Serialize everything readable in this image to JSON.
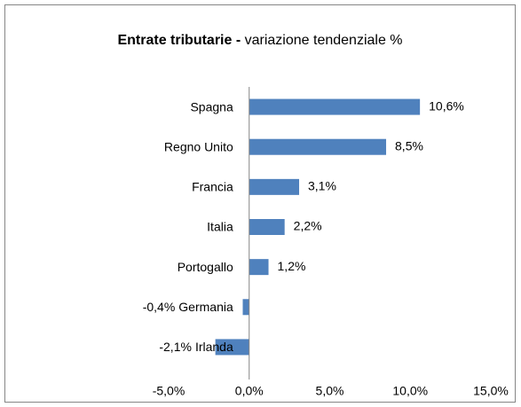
{
  "chart_data": {
    "type": "bar",
    "orientation": "horizontal",
    "title": [
      "Entrate tributarie -",
      "variazione tendenziale %"
    ],
    "categories": [
      "Spagna",
      "Regno Unito",
      "Francia",
      "Italia",
      "Portogallo",
      "Germania",
      "Irlanda"
    ],
    "values": [
      10.6,
      8.5,
      3.1,
      2.2,
      1.2,
      -0.4,
      -2.1
    ],
    "value_labels": [
      "10,6%",
      "8,5%",
      "3,1%",
      "2,2%",
      "1,2%",
      "-0,4%",
      "-2,1%"
    ],
    "color": "#4f81bd",
    "xlim": [
      -5,
      15
    ],
    "xticks": [
      {
        "value": -5,
        "label": "-5,0%"
      },
      {
        "value": 0,
        "label": "0,0%"
      },
      {
        "value": 5,
        "label": "5,0%"
      },
      {
        "value": 10,
        "label": "10,0%"
      },
      {
        "value": 15,
        "label": "15,0%"
      }
    ],
    "grid": false
  }
}
